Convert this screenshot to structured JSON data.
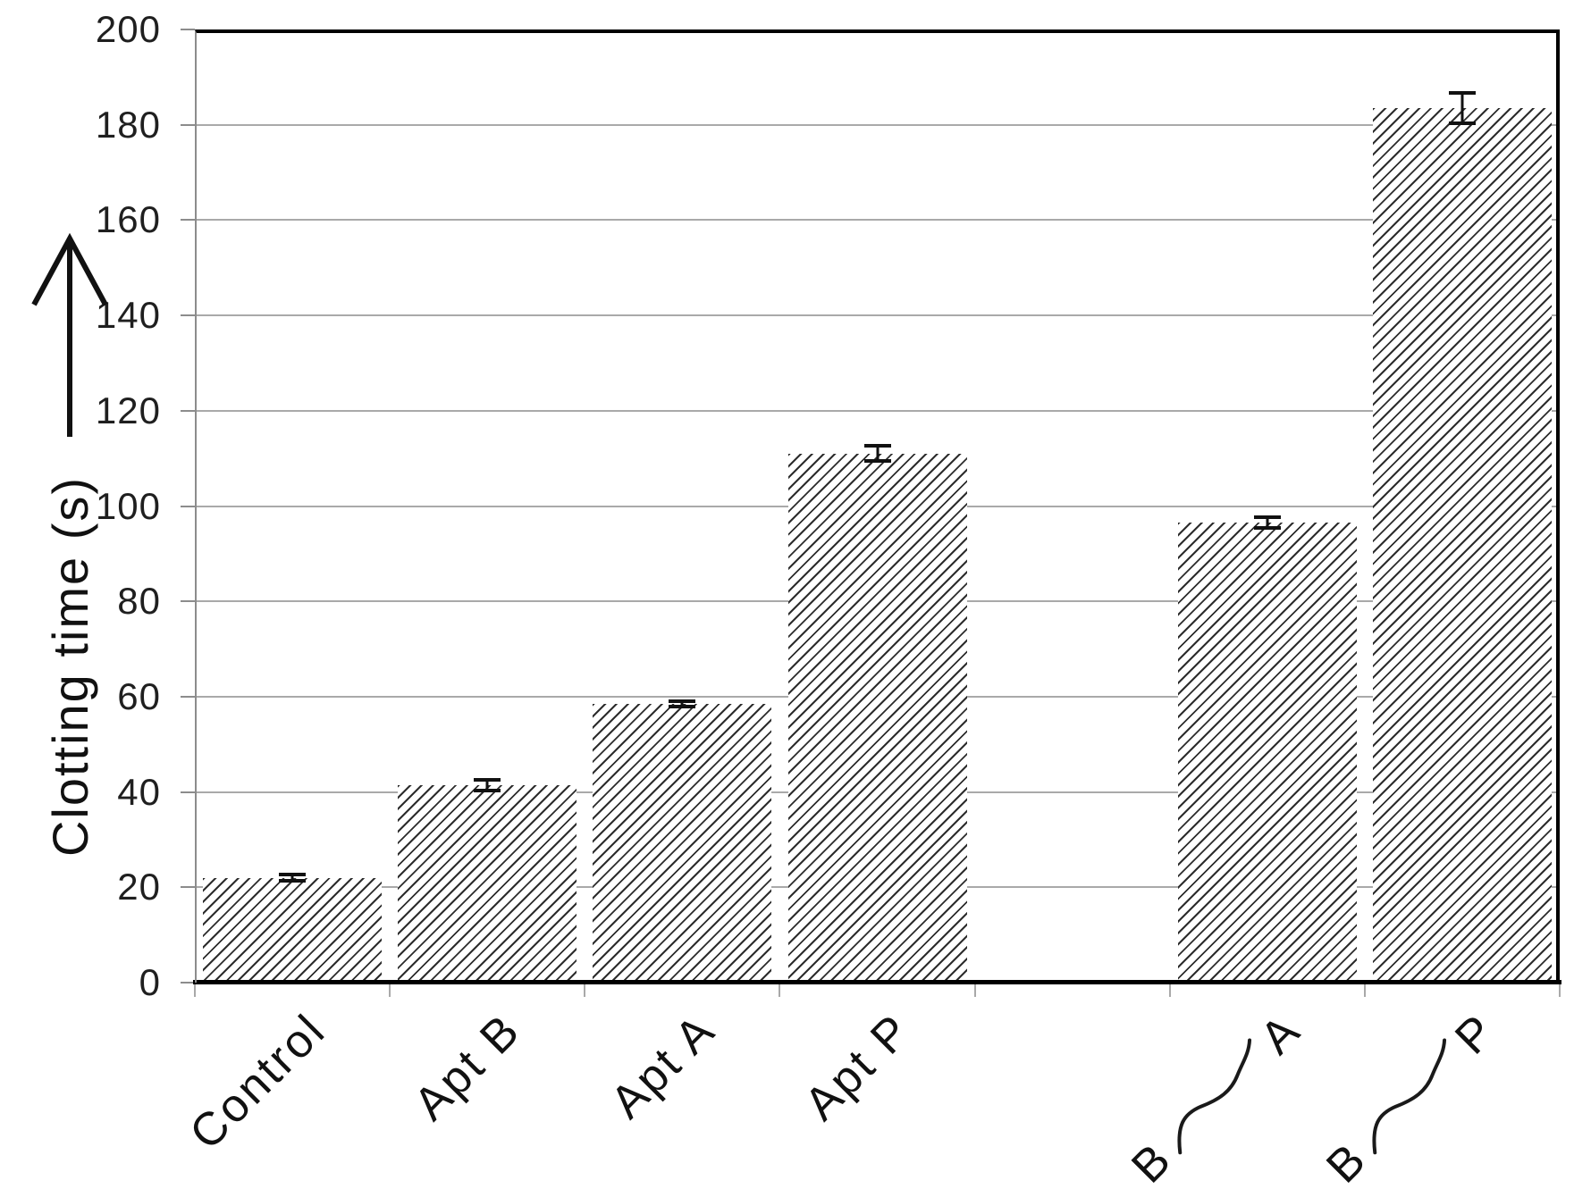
{
  "chart_data": {
    "type": "bar",
    "title": "",
    "xlabel": "",
    "ylabel": "Clotting time (s)",
    "y_axis_arrow": "up",
    "ylim": [
      0,
      200
    ],
    "ytick_interval": 20,
    "yticks": [
      0,
      20,
      40,
      60,
      80,
      100,
      120,
      140,
      160,
      180,
      200
    ],
    "grid": "horizontal",
    "legend": "none",
    "categories": [
      "Control",
      "Apt B",
      "Apt A",
      "Apt P",
      "",
      "B~A",
      "B~P"
    ],
    "series": [
      {
        "name": "Clotting time (s)",
        "values": [
          22,
          41.5,
          58.5,
          111,
          null,
          96.5,
          183.5
        ],
        "error_bars": [
          1,
          1.5,
          1,
          2,
          null,
          1.5,
          3.5
        ]
      }
    ],
    "category_labels": [
      {
        "kind": "text",
        "text": "Control"
      },
      {
        "kind": "text",
        "text": "Apt B"
      },
      {
        "kind": "text",
        "text": "Apt A"
      },
      {
        "kind": "text",
        "text": "Apt P"
      },
      {
        "kind": "blank",
        "text": ""
      },
      {
        "kind": "wave-pair",
        "left": "B",
        "right": "A"
      },
      {
        "kind": "wave-pair",
        "left": "B",
        "right": "P"
      }
    ],
    "label_rotation_deg": -45,
    "bar_style": {
      "fill": "diagonal-hatch-up",
      "hatch_color": "#2d2d2d",
      "bar_background": "#ffffff"
    },
    "colors": {
      "axis": "#000000",
      "gridline": "#a9a9a9",
      "tick": "#8c8c8c",
      "text": "#1a1a1a"
    }
  }
}
